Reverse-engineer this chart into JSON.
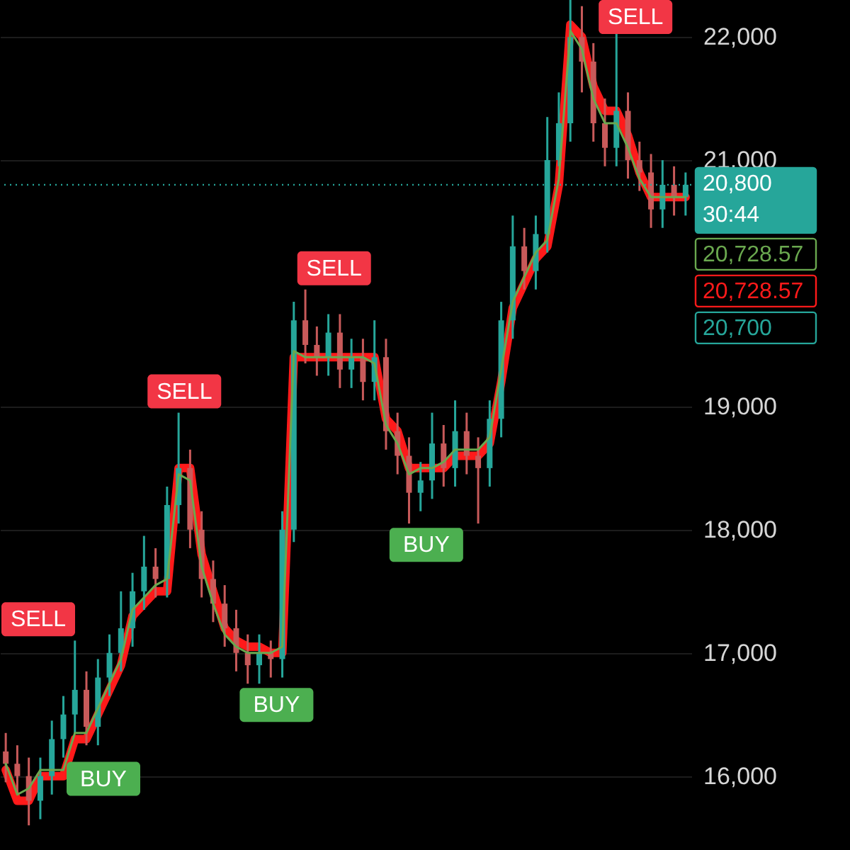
{
  "chart_data": {
    "type": "candlestick",
    "categories": [
      null,
      null,
      null,
      null,
      null,
      null,
      null,
      null,
      null,
      null,
      null,
      null,
      null,
      null,
      null,
      null,
      null,
      null,
      null,
      null,
      null,
      null,
      null,
      null,
      null,
      null,
      null,
      null,
      null,
      null,
      null,
      null,
      null,
      null,
      null,
      null,
      null,
      null,
      null,
      null,
      null,
      null,
      null,
      null,
      null,
      null,
      null,
      null,
      null,
      null,
      null,
      null,
      null,
      null,
      null,
      null,
      null,
      null,
      null,
      null
    ],
    "ohlc": [
      [
        16200,
        16350,
        15950,
        16100
      ],
      [
        16100,
        16250,
        15850,
        16000
      ],
      [
        16000,
        16150,
        15600,
        15800
      ],
      [
        15800,
        16150,
        15650,
        16000
      ],
      [
        16000,
        16450,
        15850,
        16300
      ],
      [
        16300,
        16650,
        16150,
        16500
      ],
      [
        16500,
        17100,
        16350,
        16700
      ],
      [
        16700,
        16850,
        16250,
        16400
      ],
      [
        16400,
        16950,
        16250,
        16800
      ],
      [
        16800,
        17150,
        16650,
        17000
      ],
      [
        17000,
        17500,
        16850,
        17200
      ],
      [
        17200,
        17650,
        17050,
        17500
      ],
      [
        17500,
        17950,
        17350,
        17700
      ],
      [
        17700,
        17850,
        17450,
        17600
      ],
      [
        17600,
        18350,
        17450,
        18200
      ],
      [
        18200,
        18950,
        18050,
        18500
      ],
      [
        18500,
        18650,
        17850,
        18000
      ],
      [
        18000,
        18150,
        17450,
        17600
      ],
      [
        17600,
        17750,
        17250,
        17400
      ],
      [
        17400,
        17550,
        17050,
        17200
      ],
      [
        17200,
        17350,
        16850,
        17000
      ],
      [
        17000,
        17150,
        16750,
        16900
      ],
      [
        16900,
        17150,
        16750,
        17000
      ],
      [
        17000,
        17100,
        16800,
        16950
      ],
      [
        16950,
        18150,
        16800,
        18000
      ],
      [
        18000,
        19850,
        17900,
        19700
      ],
      [
        19700,
        19950,
        19350,
        19500
      ],
      [
        19500,
        19650,
        19250,
        19400
      ],
      [
        19400,
        19750,
        19250,
        19600
      ],
      [
        19600,
        19750,
        19150,
        19300
      ],
      [
        19300,
        19550,
        19150,
        19400
      ],
      [
        19400,
        19550,
        19050,
        19200
      ],
      [
        19200,
        19700,
        19050,
        19400
      ],
      [
        19400,
        19550,
        18650,
        18800
      ],
      [
        18800,
        18950,
        18450,
        18600
      ],
      [
        18600,
        18750,
        18050,
        18300
      ],
      [
        18300,
        18550,
        18150,
        18400
      ],
      [
        18400,
        18950,
        18250,
        18700
      ],
      [
        18700,
        18850,
        18350,
        18500
      ],
      [
        18500,
        19050,
        18350,
        18800
      ],
      [
        18800,
        18950,
        18450,
        18600
      ],
      [
        18600,
        18750,
        18050,
        18500
      ],
      [
        18500,
        19050,
        18350,
        18900
      ],
      [
        18900,
        19850,
        18750,
        19700
      ],
      [
        19700,
        20550,
        19550,
        20300
      ],
      [
        20300,
        20450,
        19950,
        20100
      ],
      [
        20100,
        20550,
        19950,
        20400
      ],
      [
        20400,
        21350,
        20250,
        21000
      ],
      [
        21000,
        21550,
        20950,
        21300
      ],
      [
        21300,
        22300,
        21150,
        22000
      ],
      [
        22000,
        22250,
        21550,
        21800
      ],
      [
        21800,
        21950,
        21150,
        21300
      ],
      [
        21300,
        21500,
        20950,
        21100
      ],
      [
        21100,
        22050,
        20950,
        21400
      ],
      [
        21400,
        21550,
        20850,
        21000
      ],
      [
        21000,
        21150,
        20750,
        20900
      ],
      [
        20900,
        21050,
        20450,
        20600
      ],
      [
        20600,
        21000,
        20450,
        20800
      ],
      [
        20800,
        20950,
        20550,
        20700
      ],
      [
        20700,
        20900,
        20550,
        20800
      ]
    ],
    "series": [
      {
        "type": "line",
        "color": "#ff1a1a",
        "values": [
          16050,
          15800,
          15800,
          16000,
          16000,
          16000,
          16300,
          16300,
          16500,
          16700,
          16900,
          17300,
          17400,
          17500,
          17500,
          18500,
          18500,
          17800,
          17500,
          17200,
          17100,
          17050,
          17050,
          17000,
          17000,
          19400,
          19400,
          19400,
          19400,
          19400,
          19400,
          19400,
          19400,
          18900,
          18800,
          18500,
          18500,
          18500,
          18500,
          18600,
          18600,
          18600,
          18700,
          19200,
          19800,
          20000,
          20200,
          20300,
          20800,
          22100,
          22000,
          21600,
          21400,
          21400,
          21200,
          20900,
          20700,
          20700,
          20700,
          20700
        ]
      },
      {
        "type": "line",
        "color": "#6aa84f",
        "values": [
          16100,
          15850,
          15900,
          16050,
          16050,
          16050,
          16350,
          16350,
          16550,
          16750,
          16950,
          17350,
          17450,
          17550,
          17600,
          18450,
          18400,
          17700,
          17400,
          17150,
          17050,
          17000,
          17000,
          17000,
          17050,
          19450,
          19400,
          19400,
          19400,
          19400,
          19400,
          19400,
          19350,
          18850,
          18700,
          18450,
          18500,
          18500,
          18550,
          18650,
          18650,
          18650,
          18750,
          19300,
          19850,
          20050,
          20250,
          20350,
          20850,
          22050,
          21900,
          21500,
          21300,
          21300,
          21100,
          20850,
          20700,
          20700,
          20700,
          20700
        ]
      }
    ],
    "ylim": [
      15400,
      22300
    ],
    "yticks": [
      {
        "value": 16000,
        "label": "16,000"
      },
      {
        "value": 17000,
        "label": "17,000"
      },
      {
        "value": 18000,
        "label": "18,000"
      },
      {
        "value": 19000,
        "label": "19,000"
      },
      {
        "value": 21000,
        "label": "21,000"
      },
      {
        "value": 22000,
        "label": "22,000"
      }
    ],
    "tick_labels": "y",
    "grid": "y",
    "ref_lines": [
      {
        "axis": "y",
        "value": 20800,
        "label": "20,800",
        "color": "#26a69a",
        "line_style": "dotted"
      }
    ],
    "annotations": [
      "SELL",
      "BUY",
      "SELL",
      "BUY",
      "SELL",
      "BUY",
      "SELL",
      "30:44",
      "20,728.57",
      "20,728.57",
      "20,700"
    ]
  }
}
